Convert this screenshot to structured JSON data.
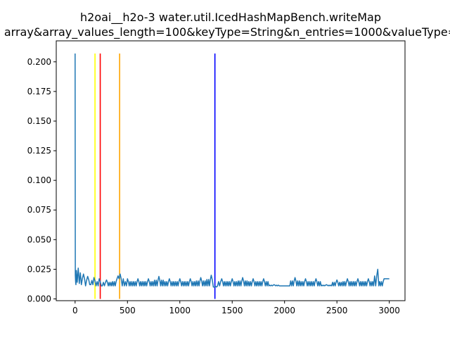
{
  "chart_data": {
    "type": "line",
    "title_line1": "h2oai__h2o-3 water.util.IcedHashMapBench.writeMap",
    "title_line2": "array&array_values_length=100&keyType=String&n_entries=1000&valueType=",
    "xlabel": "",
    "ylabel": "",
    "xlim": [
      -180,
      3150
    ],
    "ylim": [
      -0.0015,
      0.2177
    ],
    "x_ticks": [
      0,
      500,
      1000,
      1500,
      2000,
      2500,
      3000
    ],
    "x_tick_labels": [
      "0",
      "500",
      "1000",
      "1500",
      "2000",
      "2500",
      "3000"
    ],
    "y_ticks": [
      0.0,
      0.025,
      0.05,
      0.075,
      0.1,
      0.125,
      0.15,
      0.175,
      0.2
    ],
    "y_tick_labels": [
      "0.000",
      "0.025",
      "0.050",
      "0.075",
      "0.100",
      "0.125",
      "0.150",
      "0.175",
      "0.200"
    ],
    "grid": false,
    "legend": "none",
    "series_color": "#1f77b4",
    "series": [
      {
        "x": [
          0,
          2,
          5,
          8,
          12,
          20,
          30,
          40,
          50,
          60,
          80,
          100,
          120,
          150,
          180,
          200,
          230,
          260,
          300,
          350,
          400,
          430,
          470,
          500,
          550,
          600,
          650,
          700,
          750,
          800,
          850,
          900,
          950,
          1000,
          1050,
          1100,
          1150,
          1200,
          1250,
          1300,
          1330,
          1360,
          1400,
          1450,
          1500,
          1550,
          1600,
          1650,
          1700,
          1750,
          1800,
          1850,
          1900,
          1950,
          2000,
          2050,
          2100,
          2150,
          2200,
          2250,
          2300,
          2350,
          2400,
          2450,
          2500,
          2550,
          2600,
          2650,
          2700,
          2750,
          2800,
          2850,
          2890,
          2900,
          2950,
          3000
        ],
        "y": [
          0.207,
          0.02,
          0.014,
          0.012,
          0.024,
          0.014,
          0.026,
          0.013,
          0.022,
          0.012,
          0.021,
          0.011,
          0.019,
          0.012,
          0.018,
          0.011,
          0.017,
          0.011,
          0.016,
          0.011,
          0.017,
          0.021,
          0.011,
          0.017,
          0.011,
          0.017,
          0.011,
          0.017,
          0.011,
          0.019,
          0.011,
          0.017,
          0.011,
          0.017,
          0.011,
          0.017,
          0.011,
          0.018,
          0.011,
          0.02,
          0.01,
          0.011,
          0.017,
          0.011,
          0.017,
          0.011,
          0.018,
          0.011,
          0.017,
          0.011,
          0.017,
          0.011,
          0.012,
          0.011,
          0.011,
          0.011,
          0.018,
          0.011,
          0.017,
          0.011,
          0.017,
          0.011,
          0.012,
          0.011,
          0.016,
          0.011,
          0.017,
          0.011,
          0.017,
          0.011,
          0.017,
          0.011,
          0.025,
          0.011,
          0.017,
          0.017
        ]
      }
    ],
    "vertical_lines": [
      {
        "x": 190,
        "y0": 0.0,
        "y1": 0.207,
        "color": "#ffff00"
      },
      {
        "x": 240,
        "y0": 0.0,
        "y1": 0.207,
        "color": "#ff0000"
      },
      {
        "x": 425,
        "y0": 0.0,
        "y1": 0.207,
        "color": "#ffa500"
      },
      {
        "x": 1335,
        "y0": 0.0,
        "y1": 0.207,
        "color": "#0000ff"
      }
    ]
  }
}
